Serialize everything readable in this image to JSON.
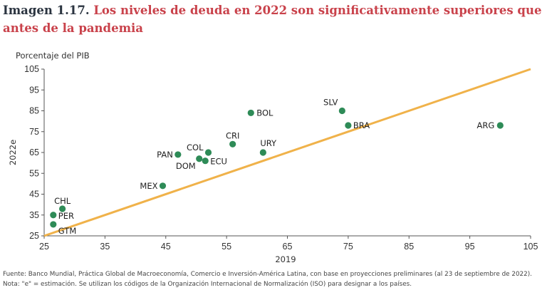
{
  "header": {
    "figure_number": "Imagen 1.17.",
    "title": "Los niveles de deuda en 2022 son significativamente superiores que antes de la pandemia"
  },
  "colors": {
    "title_number": "#2b3440",
    "title_text": "#c9424b",
    "points": "#2e8b57",
    "reference_line": "#f0b24a"
  },
  "chart_data": {
    "type": "scatter",
    "title": "Los niveles de deuda en 2022 son significativamente superiores que antes de la pandemia",
    "unit_label": "Porcentaje del PIB",
    "xlabel": "2019",
    "ylabel": "2022e",
    "xlim": [
      25,
      105
    ],
    "ylim": [
      25,
      105
    ],
    "x_ticks": [
      25,
      35,
      45,
      55,
      65,
      75,
      85,
      95,
      105
    ],
    "y_ticks": [
      25,
      35,
      45,
      55,
      65,
      75,
      85,
      95,
      105
    ],
    "reference_line": {
      "type": "45-degree",
      "from": [
        25,
        25
      ],
      "to": [
        105,
        105
      ]
    },
    "points": [
      {
        "label": "ARG",
        "x": 100,
        "y": 78
      },
      {
        "label": "SLV",
        "x": 74,
        "y": 85
      },
      {
        "label": "BRA",
        "x": 75,
        "y": 78
      },
      {
        "label": "BOL",
        "x": 59,
        "y": 84
      },
      {
        "label": "CRI",
        "x": 56,
        "y": 69
      },
      {
        "label": "URY",
        "x": 61,
        "y": 65
      },
      {
        "label": "COL",
        "x": 52,
        "y": 65
      },
      {
        "label": "PAN",
        "x": 47,
        "y": 64
      },
      {
        "label": "DOM",
        "x": 50.5,
        "y": 62
      },
      {
        "label": "ECU",
        "x": 51.5,
        "y": 61
      },
      {
        "label": "MEX",
        "x": 44.5,
        "y": 49
      },
      {
        "label": "CHL",
        "x": 28,
        "y": 38
      },
      {
        "label": "PER",
        "x": 26.5,
        "y": 35
      },
      {
        "label": "GTM",
        "x": 26.5,
        "y": 30.5
      }
    ]
  },
  "footer": {
    "source": "Fuente: Banco Mundial, Práctica Global de Macroeconomía, Comercio e Inversión-América Latina, con base en proyecciones preliminares (al 23 de septiembre de 2022).",
    "note": "Nota: \"e\" = estimación. Se utilizan los códigos de la Organización Internacional de Normalización (ISO) para designar a los países."
  }
}
